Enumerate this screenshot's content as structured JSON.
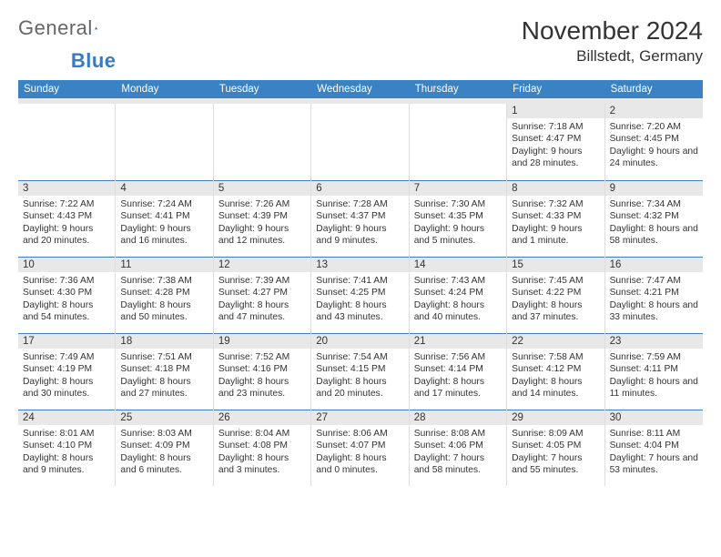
{
  "logo": {
    "part1": "General",
    "part2": "Blue"
  },
  "title": "November 2024",
  "location": "Billstedt, Germany",
  "colors": {
    "header_bg": "#3a82c4",
    "header_text": "#ffffff",
    "daynum_bg": "#e8e8e8",
    "border": "#3a82c4",
    "text": "#333333",
    "logo_blue": "#3a7bbf"
  },
  "day_names": [
    "Sunday",
    "Monday",
    "Tuesday",
    "Wednesday",
    "Thursday",
    "Friday",
    "Saturday"
  ],
  "weeks": [
    [
      {
        "day": null
      },
      {
        "day": null
      },
      {
        "day": null
      },
      {
        "day": null
      },
      {
        "day": null
      },
      {
        "day": "1",
        "sunrise": "Sunrise: 7:18 AM",
        "sunset": "Sunset: 4:47 PM",
        "daylight": "Daylight: 9 hours and 28 minutes."
      },
      {
        "day": "2",
        "sunrise": "Sunrise: 7:20 AM",
        "sunset": "Sunset: 4:45 PM",
        "daylight": "Daylight: 9 hours and 24 minutes."
      }
    ],
    [
      {
        "day": "3",
        "sunrise": "Sunrise: 7:22 AM",
        "sunset": "Sunset: 4:43 PM",
        "daylight": "Daylight: 9 hours and 20 minutes."
      },
      {
        "day": "4",
        "sunrise": "Sunrise: 7:24 AM",
        "sunset": "Sunset: 4:41 PM",
        "daylight": "Daylight: 9 hours and 16 minutes."
      },
      {
        "day": "5",
        "sunrise": "Sunrise: 7:26 AM",
        "sunset": "Sunset: 4:39 PM",
        "daylight": "Daylight: 9 hours and 12 minutes."
      },
      {
        "day": "6",
        "sunrise": "Sunrise: 7:28 AM",
        "sunset": "Sunset: 4:37 PM",
        "daylight": "Daylight: 9 hours and 9 minutes."
      },
      {
        "day": "7",
        "sunrise": "Sunrise: 7:30 AM",
        "sunset": "Sunset: 4:35 PM",
        "daylight": "Daylight: 9 hours and 5 minutes."
      },
      {
        "day": "8",
        "sunrise": "Sunrise: 7:32 AM",
        "sunset": "Sunset: 4:33 PM",
        "daylight": "Daylight: 9 hours and 1 minute."
      },
      {
        "day": "9",
        "sunrise": "Sunrise: 7:34 AM",
        "sunset": "Sunset: 4:32 PM",
        "daylight": "Daylight: 8 hours and 58 minutes."
      }
    ],
    [
      {
        "day": "10",
        "sunrise": "Sunrise: 7:36 AM",
        "sunset": "Sunset: 4:30 PM",
        "daylight": "Daylight: 8 hours and 54 minutes."
      },
      {
        "day": "11",
        "sunrise": "Sunrise: 7:38 AM",
        "sunset": "Sunset: 4:28 PM",
        "daylight": "Daylight: 8 hours and 50 minutes."
      },
      {
        "day": "12",
        "sunrise": "Sunrise: 7:39 AM",
        "sunset": "Sunset: 4:27 PM",
        "daylight": "Daylight: 8 hours and 47 minutes."
      },
      {
        "day": "13",
        "sunrise": "Sunrise: 7:41 AM",
        "sunset": "Sunset: 4:25 PM",
        "daylight": "Daylight: 8 hours and 43 minutes."
      },
      {
        "day": "14",
        "sunrise": "Sunrise: 7:43 AM",
        "sunset": "Sunset: 4:24 PM",
        "daylight": "Daylight: 8 hours and 40 minutes."
      },
      {
        "day": "15",
        "sunrise": "Sunrise: 7:45 AM",
        "sunset": "Sunset: 4:22 PM",
        "daylight": "Daylight: 8 hours and 37 minutes."
      },
      {
        "day": "16",
        "sunrise": "Sunrise: 7:47 AM",
        "sunset": "Sunset: 4:21 PM",
        "daylight": "Daylight: 8 hours and 33 minutes."
      }
    ],
    [
      {
        "day": "17",
        "sunrise": "Sunrise: 7:49 AM",
        "sunset": "Sunset: 4:19 PM",
        "daylight": "Daylight: 8 hours and 30 minutes."
      },
      {
        "day": "18",
        "sunrise": "Sunrise: 7:51 AM",
        "sunset": "Sunset: 4:18 PM",
        "daylight": "Daylight: 8 hours and 27 minutes."
      },
      {
        "day": "19",
        "sunrise": "Sunrise: 7:52 AM",
        "sunset": "Sunset: 4:16 PM",
        "daylight": "Daylight: 8 hours and 23 minutes."
      },
      {
        "day": "20",
        "sunrise": "Sunrise: 7:54 AM",
        "sunset": "Sunset: 4:15 PM",
        "daylight": "Daylight: 8 hours and 20 minutes."
      },
      {
        "day": "21",
        "sunrise": "Sunrise: 7:56 AM",
        "sunset": "Sunset: 4:14 PM",
        "daylight": "Daylight: 8 hours and 17 minutes."
      },
      {
        "day": "22",
        "sunrise": "Sunrise: 7:58 AM",
        "sunset": "Sunset: 4:12 PM",
        "daylight": "Daylight: 8 hours and 14 minutes."
      },
      {
        "day": "23",
        "sunrise": "Sunrise: 7:59 AM",
        "sunset": "Sunset: 4:11 PM",
        "daylight": "Daylight: 8 hours and 11 minutes."
      }
    ],
    [
      {
        "day": "24",
        "sunrise": "Sunrise: 8:01 AM",
        "sunset": "Sunset: 4:10 PM",
        "daylight": "Daylight: 8 hours and 9 minutes."
      },
      {
        "day": "25",
        "sunrise": "Sunrise: 8:03 AM",
        "sunset": "Sunset: 4:09 PM",
        "daylight": "Daylight: 8 hours and 6 minutes."
      },
      {
        "day": "26",
        "sunrise": "Sunrise: 8:04 AM",
        "sunset": "Sunset: 4:08 PM",
        "daylight": "Daylight: 8 hours and 3 minutes."
      },
      {
        "day": "27",
        "sunrise": "Sunrise: 8:06 AM",
        "sunset": "Sunset: 4:07 PM",
        "daylight": "Daylight: 8 hours and 0 minutes."
      },
      {
        "day": "28",
        "sunrise": "Sunrise: 8:08 AM",
        "sunset": "Sunset: 4:06 PM",
        "daylight": "Daylight: 7 hours and 58 minutes."
      },
      {
        "day": "29",
        "sunrise": "Sunrise: 8:09 AM",
        "sunset": "Sunset: 4:05 PM",
        "daylight": "Daylight: 7 hours and 55 minutes."
      },
      {
        "day": "30",
        "sunrise": "Sunrise: 8:11 AM",
        "sunset": "Sunset: 4:04 PM",
        "daylight": "Daylight: 7 hours and 53 minutes."
      }
    ]
  ]
}
